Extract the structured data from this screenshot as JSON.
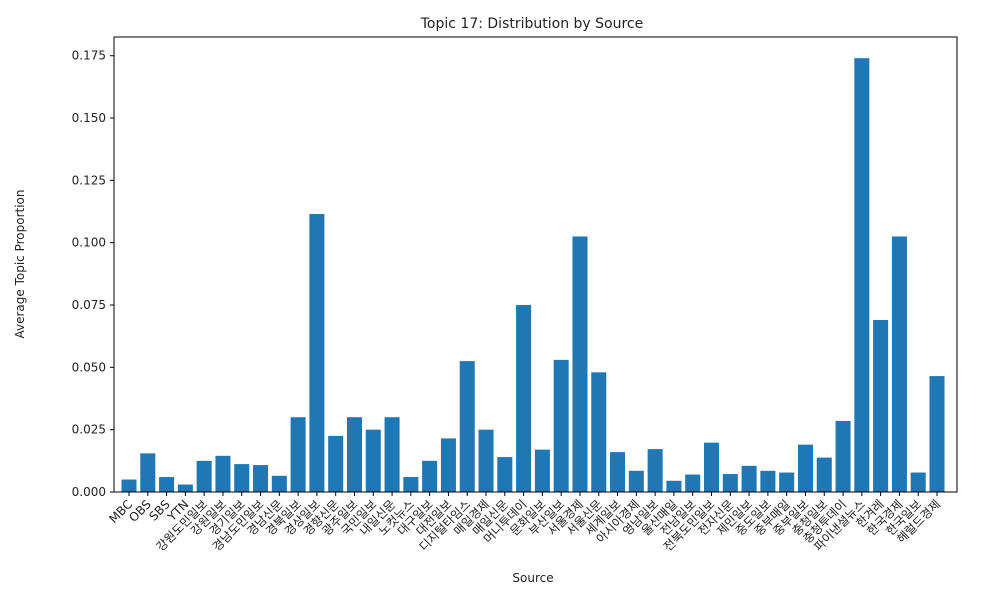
{
  "chart_data": {
    "type": "bar",
    "title": "Topic 17: Distribution by Source",
    "xlabel": "Source",
    "ylabel": "Average Topic Proportion",
    "ylim": [
      0,
      0.1825
    ],
    "yticks": [
      "0.000",
      "0.025",
      "0.050",
      "0.075",
      "0.100",
      "0.125",
      "0.150",
      "0.175"
    ],
    "bar_color": "#1f77b4",
    "grid": false,
    "categories": [
      "MBC",
      "OBS",
      "SBS",
      "YTN",
      "강원도민일보",
      "강원일보",
      "경기일보",
      "경남도민일보",
      "경남신문",
      "경북일보",
      "경상일보",
      "경향신문",
      "광주일보",
      "국민일보",
      "내일신문",
      "노컷뉴스",
      "대구일보",
      "대전일보",
      "디지털타임스",
      "매일경제",
      "매일신문",
      "머니투데이",
      "문화일보",
      "부산일보",
      "서울경제",
      "서울신문",
      "세계일보",
      "아시아경제",
      "영남일보",
      "울산매일",
      "전남일보",
      "전북도민일보",
      "전자신문",
      "제민일보",
      "중도일보",
      "중부매일",
      "중부일보",
      "충청일보",
      "충청투데이",
      "파이낸셜뉴스",
      "한겨레",
      "한국경제",
      "한국일보",
      "헤럴드경제"
    ],
    "values": [
      0.005,
      0.0155,
      0.006,
      0.003,
      0.0125,
      0.0145,
      0.0112,
      0.0108,
      0.0065,
      0.03,
      0.1115,
      0.0225,
      0.03,
      0.025,
      0.03,
      0.006,
      0.0125,
      0.0215,
      0.0525,
      0.025,
      0.014,
      0.075,
      0.017,
      0.053,
      0.1025,
      0.048,
      0.016,
      0.0085,
      0.0172,
      0.0045,
      0.007,
      0.0198,
      0.0072,
      0.0105,
      0.0085,
      0.0078,
      0.019,
      0.0138,
      0.0285,
      0.174,
      0.069,
      0.1025,
      0.0078,
      0.0465
    ]
  }
}
